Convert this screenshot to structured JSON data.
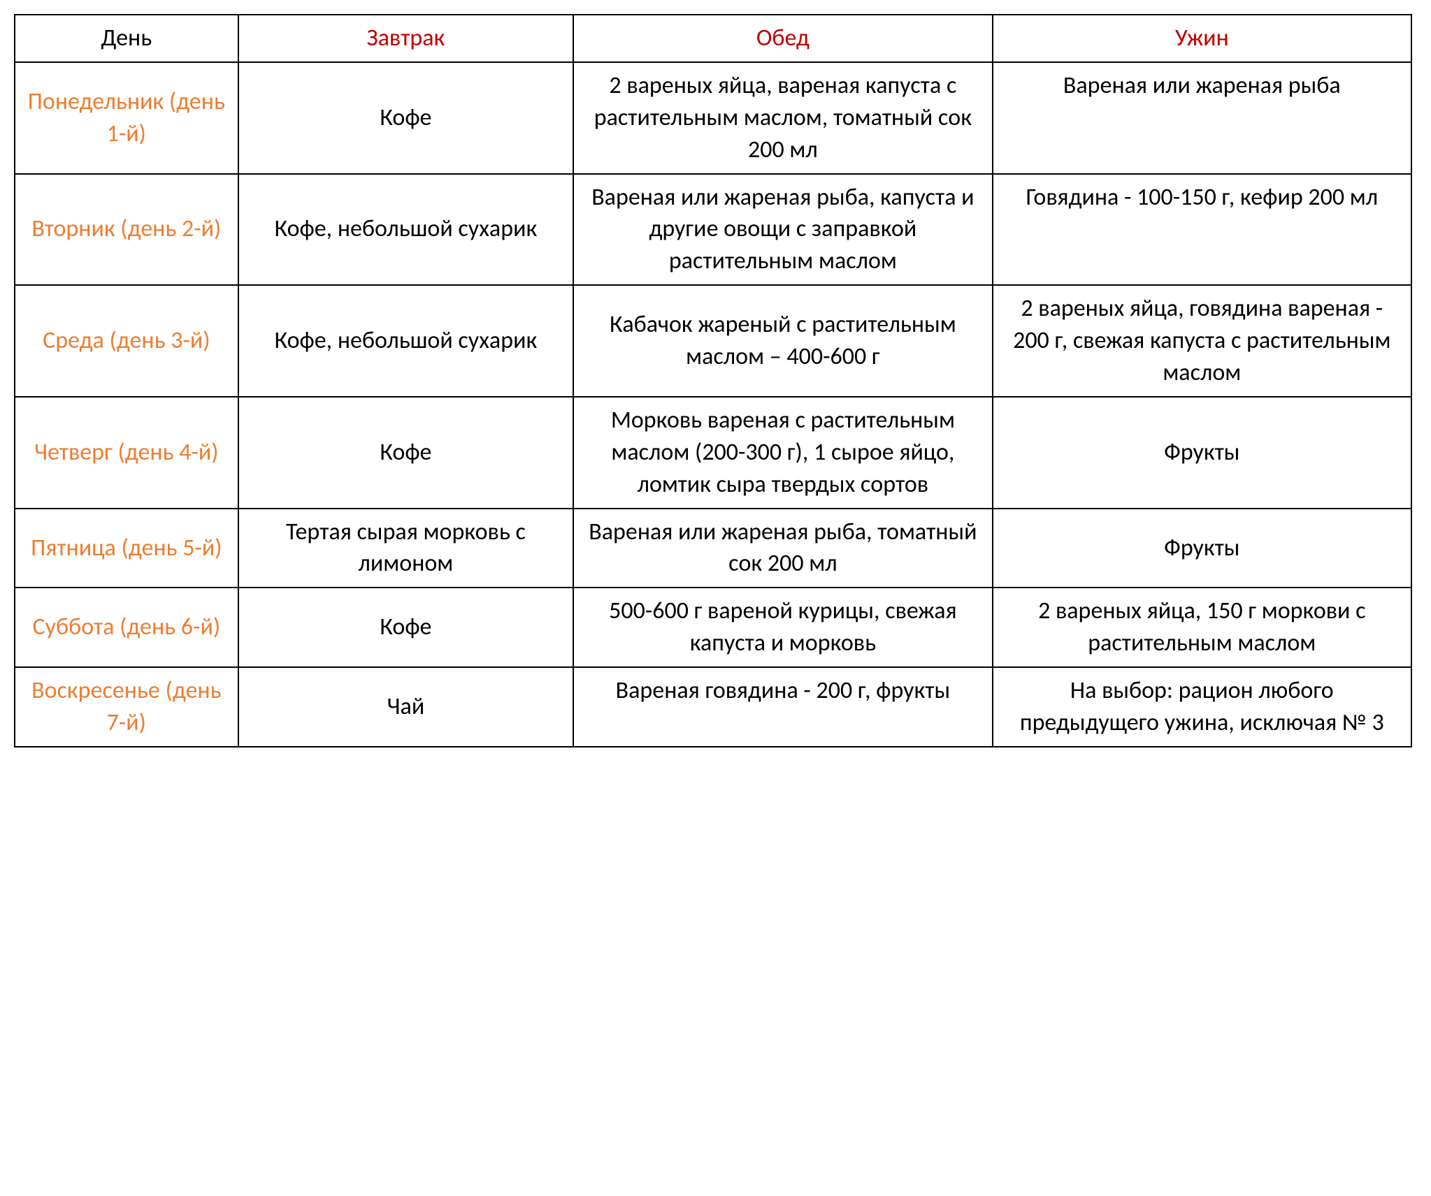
{
  "type": "table",
  "columns": [
    "День",
    "Завтрак",
    "Обед",
    "Ужин"
  ],
  "column_widths_pct": [
    16,
    24,
    30,
    30
  ],
  "header_colors": [
    "#000000",
    "#c00000",
    "#c00000",
    "#c00000"
  ],
  "day_color": "#ed7d31",
  "text_color": "#000000",
  "border_color": "#000000",
  "background_color": "#ffffff",
  "font_family": "Calibri",
  "font_size_pt": 26,
  "rows": [
    {
      "day": "Понедельник (день 1-й)",
      "breakfast": "Кофе",
      "lunch": "2 вареных яйца, вареная капуста с растительным маслом, томатный сок 200 мл",
      "dinner": "Вареная или жареная рыба"
    },
    {
      "day": "Вторник (день 2-й)",
      "breakfast": "Кофе, небольшой сухарик",
      "lunch": "Вареная или жареная рыба, капуста и другие овощи с заправкой растительным маслом",
      "dinner": "Говядина - 100-150 г, кефир 200 мл"
    },
    {
      "day": "Среда (день 3-й)",
      "breakfast": "Кофе, небольшой сухарик",
      "lunch": "Кабачок жареный с растительным маслом – 400-600 г",
      "dinner": "2 вареных яйца, говядина вареная - 200 г, свежая капуста с растительным маслом"
    },
    {
      "day": "Четверг (день 4-й)",
      "breakfast": "Кофе",
      "lunch": "Морковь вареная с растительным маслом (200-300 г), 1 сырое яйцо, ломтик сыра твердых сортов",
      "dinner": "Фрукты"
    },
    {
      "day": "Пятница (день 5-й)",
      "breakfast": "Тертая сырая морковь с лимоном",
      "lunch": "Вареная или жареная рыба, томатный сок 200 мл",
      "dinner": "Фрукты"
    },
    {
      "day": "Суббота (день 6-й)",
      "breakfast": "Кофе",
      "lunch": "500-600 г вареной курицы, свежая капуста и морковь",
      "dinner": "2 вареных яйца, 150 г моркови с растительным маслом"
    },
    {
      "day": "Воскресенье (день 7-й)",
      "breakfast": "Чай",
      "lunch": "Вареная говядина - 200 г, фрукты",
      "dinner": "На выбор: рацион любого предыдущего ужина, исключая № 3"
    }
  ]
}
